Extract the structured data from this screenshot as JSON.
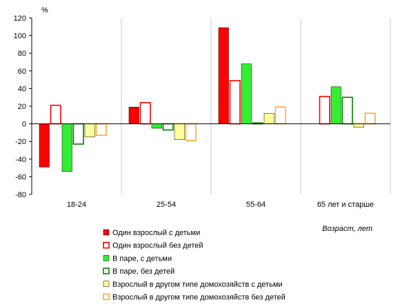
{
  "chart_data": {
    "type": "bar",
    "ylabel": "%",
    "xlabel": "Возраст, лет",
    "ylim": [
      -80,
      120
    ],
    "yticks": [
      -80,
      -60,
      -40,
      -20,
      0,
      20,
      40,
      60,
      80,
      100,
      120
    ],
    "grid": "vertical category separators",
    "legend_position": "bottom",
    "categories": [
      "18-24",
      "25-54",
      "55-64",
      "65 лет и старше"
    ],
    "series": [
      {
        "name": "Один взрослый с детьми",
        "values": [
          -49,
          19,
          109,
          null
        ],
        "color": "#ff0000",
        "style": "filled"
      },
      {
        "name": "Один взрослый без детей",
        "values": [
          21,
          24,
          49,
          31
        ],
        "color": "#ff0000",
        "style": "outline"
      },
      {
        "name": "В паре, с детьми",
        "values": [
          -54,
          -5,
          68,
          42
        ],
        "color": "#33ee33",
        "style": "filled"
      },
      {
        "name": "В паре, без детей",
        "values": [
          -23,
          -7,
          1,
          30
        ],
        "color": "#008000",
        "style": "outline"
      },
      {
        "name": "Взрослый в другом типе домохозяйств с детьми",
        "values": [
          -15,
          -18,
          12,
          -4
        ],
        "color": "#ffff99",
        "style": "filled"
      },
      {
        "name": "Взрослый в другом типе домохозяйств без детей",
        "values": [
          -13,
          -19,
          19,
          12
        ],
        "color": "#ffaa33",
        "style": "outline"
      }
    ]
  }
}
